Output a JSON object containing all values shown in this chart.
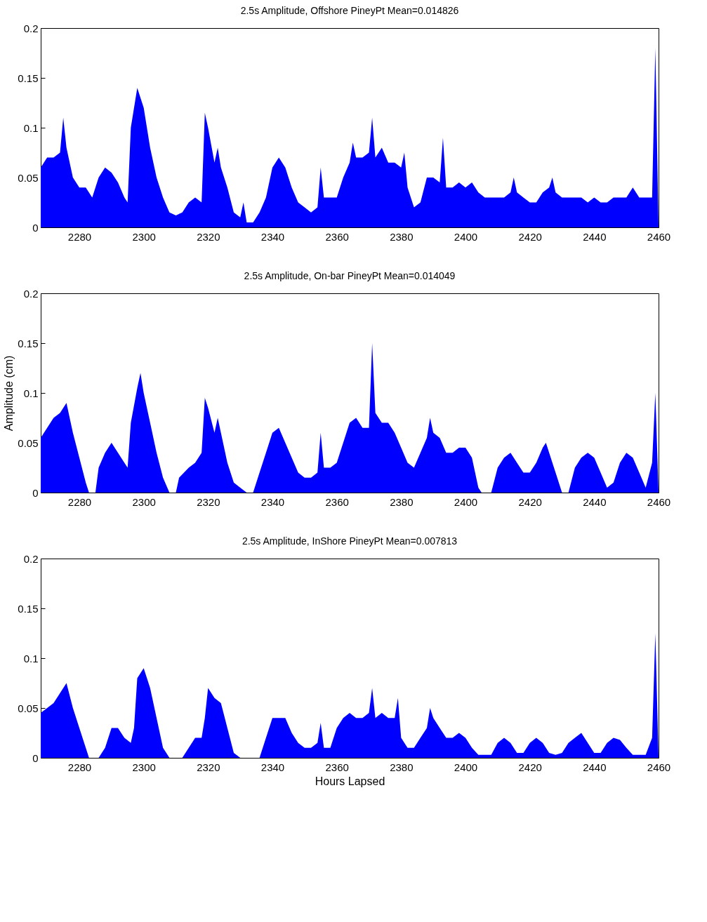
{
  "chart_data": [
    {
      "type": "area",
      "title": "2.5s Amplitude, Offshore PineyPt Mean=0.014826",
      "xlim": [
        2268,
        2460
      ],
      "xticks": [
        2280,
        2300,
        2320,
        2340,
        2360,
        2380,
        2400,
        2420,
        2440,
        2460
      ],
      "ylim": [
        0,
        0.2
      ],
      "yticks": [
        0,
        0.05,
        0.1,
        0.15,
        0.2
      ],
      "grid": false,
      "x": [
        2268,
        2270,
        2272,
        2274,
        2275,
        2276,
        2278,
        2280,
        2282,
        2284,
        2286,
        2288,
        2290,
        2292,
        2294,
        2295,
        2296,
        2298,
        2300,
        2302,
        2304,
        2306,
        2308,
        2310,
        2312,
        2314,
        2316,
        2318,
        2319,
        2320,
        2322,
        2323,
        2324,
        2326,
        2328,
        2330,
        2331,
        2332,
        2334,
        2336,
        2338,
        2340,
        2342,
        2344,
        2346,
        2348,
        2350,
        2352,
        2354,
        2355,
        2356,
        2358,
        2360,
        2362,
        2364,
        2365,
        2366,
        2368,
        2370,
        2371,
        2372,
        2374,
        2376,
        2378,
        2380,
        2381,
        2382,
        2384,
        2386,
        2388,
        2390,
        2392,
        2393,
        2394,
        2396,
        2398,
        2400,
        2402,
        2404,
        2406,
        2408,
        2410,
        2412,
        2414,
        2415,
        2416,
        2418,
        2420,
        2422,
        2424,
        2426,
        2427,
        2428,
        2430,
        2432,
        2434,
        2436,
        2438,
        2440,
        2442,
        2444,
        2446,
        2448,
        2450,
        2452,
        2454,
        2456,
        2458,
        2459,
        2460
      ],
      "series": [
        {
          "color": "#0000ff",
          "values": [
            0.06,
            0.07,
            0.07,
            0.075,
            0.11,
            0.08,
            0.05,
            0.04,
            0.04,
            0.03,
            0.05,
            0.06,
            0.055,
            0.045,
            0.03,
            0.025,
            0.1,
            0.14,
            0.12,
            0.08,
            0.05,
            0.03,
            0.015,
            0.012,
            0.015,
            0.025,
            0.03,
            0.025,
            0.115,
            0.1,
            0.065,
            0.08,
            0.06,
            0.04,
            0.015,
            0.01,
            0.025,
            0.005,
            0.005,
            0.015,
            0.03,
            0.06,
            0.07,
            0.06,
            0.04,
            0.025,
            0.02,
            0.015,
            0.02,
            0.06,
            0.03,
            0.03,
            0.03,
            0.05,
            0.065,
            0.085,
            0.07,
            0.07,
            0.075,
            0.11,
            0.07,
            0.08,
            0.065,
            0.065,
            0.06,
            0.075,
            0.04,
            0.02,
            0.025,
            0.05,
            0.05,
            0.045,
            0.09,
            0.04,
            0.04,
            0.045,
            0.04,
            0.045,
            0.035,
            0.03,
            0.03,
            0.03,
            0.03,
            0.035,
            0.05,
            0.035,
            0.03,
            0.025,
            0.025,
            0.035,
            0.04,
            0.05,
            0.035,
            0.03,
            0.03,
            0.03,
            0.03,
            0.025,
            0.03,
            0.025,
            0.025,
            0.03,
            0.03,
            0.03,
            0.04,
            0.03,
            0.03,
            0.03,
            0.18,
            0
          ]
        }
      ]
    },
    {
      "type": "area",
      "title": "2.5s Amplitude, On-bar PineyPt Mean=0.014049",
      "ylabel": "Amplitude (cm)",
      "xlim": [
        2268,
        2460
      ],
      "xticks": [
        2280,
        2300,
        2320,
        2340,
        2360,
        2380,
        2400,
        2420,
        2440,
        2460
      ],
      "ylim": [
        0,
        0.2
      ],
      "yticks": [
        0,
        0.05,
        0.1,
        0.15,
        0.2
      ],
      "grid": false,
      "x": [
        2268,
        2270,
        2272,
        2274,
        2276,
        2278,
        2280,
        2282,
        2283,
        2285,
        2286,
        2288,
        2290,
        2292,
        2294,
        2295,
        2296,
        2298,
        2299,
        2300,
        2302,
        2304,
        2306,
        2308,
        2310,
        2311,
        2314,
        2316,
        2318,
        2319,
        2320,
        2322,
        2323,
        2324,
        2326,
        2328,
        2330,
        2332,
        2334,
        2336,
        2338,
        2340,
        2342,
        2344,
        2346,
        2348,
        2350,
        2352,
        2354,
        2355,
        2356,
        2358,
        2360,
        2362,
        2364,
        2366,
        2368,
        2370,
        2371,
        2372,
        2374,
        2376,
        2378,
        2380,
        2382,
        2384,
        2386,
        2388,
        2389,
        2390,
        2392,
        2394,
        2396,
        2398,
        2400,
        2402,
        2404,
        2405,
        2408,
        2410,
        2412,
        2414,
        2416,
        2418,
        2420,
        2422,
        2424,
        2425,
        2426,
        2428,
        2430,
        2432,
        2434,
        2436,
        2438,
        2440,
        2442,
        2444,
        2446,
        2448,
        2450,
        2452,
        2454,
        2456,
        2458,
        2459,
        2460
      ],
      "series": [
        {
          "color": "#0000ff",
          "values": [
            0.055,
            0.065,
            0.075,
            0.08,
            0.09,
            0.06,
            0.035,
            0.01,
            0,
            0,
            0.025,
            0.04,
            0.05,
            0.04,
            0.03,
            0.025,
            0.07,
            0.105,
            0.12,
            0.1,
            0.07,
            0.04,
            0.015,
            0,
            0,
            0.015,
            0.025,
            0.03,
            0.04,
            0.095,
            0.085,
            0.06,
            0.075,
            0.06,
            0.03,
            0.01,
            0.005,
            0,
            0,
            0.02,
            0.04,
            0.06,
            0.065,
            0.05,
            0.035,
            0.02,
            0.015,
            0.015,
            0.02,
            0.06,
            0.025,
            0.025,
            0.03,
            0.05,
            0.07,
            0.075,
            0.065,
            0.065,
            0.15,
            0.08,
            0.07,
            0.07,
            0.06,
            0.045,
            0.03,
            0.025,
            0.04,
            0.055,
            0.075,
            0.06,
            0.055,
            0.04,
            0.04,
            0.045,
            0.045,
            0.035,
            0.005,
            0,
            0,
            0.025,
            0.035,
            0.04,
            0.03,
            0.02,
            0.02,
            0.03,
            0.045,
            0.05,
            0.04,
            0.02,
            0,
            0,
            0.025,
            0.035,
            0.04,
            0.035,
            0.02,
            0.005,
            0.01,
            0.03,
            0.04,
            0.035,
            0.02,
            0.005,
            0.03,
            0.1,
            0
          ]
        }
      ]
    },
    {
      "type": "area",
      "title": "2.5s Amplitude, InShore PineyPt Mean=0.007813",
      "xlabel": "Hours Lapsed",
      "xlim": [
        2268,
        2460
      ],
      "xticks": [
        2280,
        2300,
        2320,
        2340,
        2360,
        2380,
        2400,
        2420,
        2440,
        2460
      ],
      "ylim": [
        0,
        0.2
      ],
      "yticks": [
        0,
        0.05,
        0.1,
        0.15,
        0.2
      ],
      "grid": false,
      "x": [
        2268,
        2270,
        2272,
        2274,
        2276,
        2278,
        2280,
        2282,
        2283,
        2286,
        2288,
        2290,
        2292,
        2294,
        2296,
        2297,
        2298,
        2300,
        2302,
        2304,
        2306,
        2308,
        2312,
        2314,
        2316,
        2318,
        2319,
        2320,
        2322,
        2324,
        2326,
        2328,
        2330,
        2336,
        2338,
        2340,
        2342,
        2344,
        2346,
        2348,
        2350,
        2352,
        2354,
        2355,
        2356,
        2358,
        2360,
        2362,
        2364,
        2366,
        2368,
        2370,
        2371,
        2372,
        2374,
        2376,
        2378,
        2379,
        2380,
        2382,
        2384,
        2386,
        2388,
        2389,
        2390,
        2392,
        2394,
        2396,
        2398,
        2400,
        2402,
        2404,
        2408,
        2410,
        2412,
        2414,
        2416,
        2418,
        2420,
        2422,
        2424,
        2426,
        2428,
        2430,
        2432,
        2434,
        2436,
        2438,
        2440,
        2442,
        2444,
        2446,
        2448,
        2450,
        2452,
        2456,
        2458,
        2459,
        2460
      ],
      "series": [
        {
          "color": "#0000ff",
          "values": [
            0.045,
            0.05,
            0.055,
            0.065,
            0.075,
            0.05,
            0.03,
            0.01,
            0,
            0,
            0.01,
            0.03,
            0.03,
            0.02,
            0.015,
            0.03,
            0.08,
            0.09,
            0.07,
            0.04,
            0.01,
            0,
            0,
            0.01,
            0.02,
            0.02,
            0.04,
            0.07,
            0.06,
            0.055,
            0.03,
            0.005,
            0,
            0,
            0.02,
            0.04,
            0.04,
            0.04,
            0.025,
            0.015,
            0.01,
            0.01,
            0.015,
            0.035,
            0.01,
            0.01,
            0.03,
            0.04,
            0.045,
            0.04,
            0.04,
            0.045,
            0.07,
            0.04,
            0.045,
            0.04,
            0.04,
            0.06,
            0.02,
            0.01,
            0.01,
            0.02,
            0.03,
            0.05,
            0.04,
            0.03,
            0.02,
            0.02,
            0.025,
            0.02,
            0.01,
            0.003,
            0.003,
            0.015,
            0.02,
            0.015,
            0.005,
            0.005,
            0.015,
            0.02,
            0.015,
            0.005,
            0.003,
            0.005,
            0.015,
            0.02,
            0.025,
            0.015,
            0.005,
            0.005,
            0.015,
            0.02,
            0.018,
            0.01,
            0.003,
            0.003,
            0.02,
            0.125,
            0
          ]
        }
      ]
    }
  ]
}
